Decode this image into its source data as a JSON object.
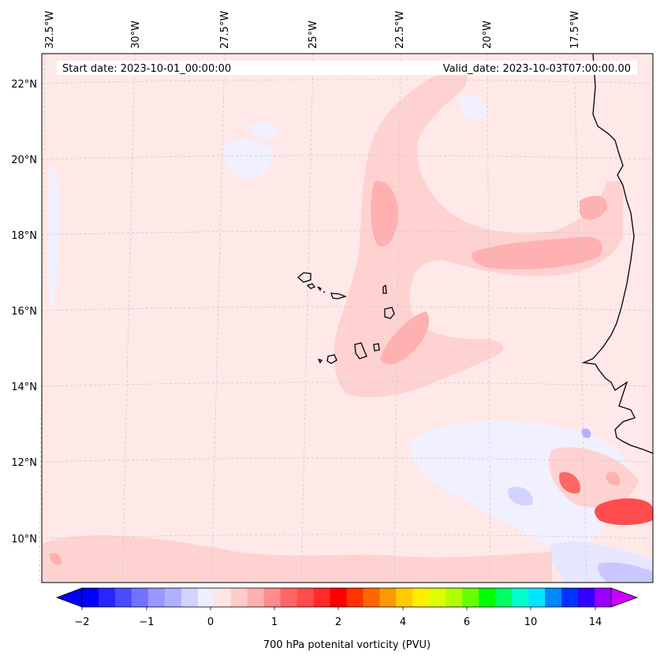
{
  "header": {
    "start_date": "Start date: 2023-10-01_00:00:00",
    "valid_date": "Valid_date: 2023-10-03T07:00:00.00"
  },
  "map": {
    "lon_labels": [
      "32.5°W",
      "30°W",
      "27.5°W",
      "25°W",
      "22.5°W",
      "20°W",
      "17.5°W"
    ],
    "lat_labels": [
      "22°N",
      "20°N",
      "18°N",
      "16°N",
      "14°N",
      "12°N",
      "10°N"
    ],
    "field": "700 hPa potential vorticity",
    "background_color": "#ffe8e8",
    "coastline_color": "#000000",
    "gridline_color": "#c8c8c8"
  },
  "colorbar": {
    "label": "700 hPa potenital vorticity (PVU)",
    "ticks": [
      "−2",
      "−1",
      "0",
      "1",
      "2",
      "4",
      "6",
      "10",
      "14"
    ],
    "colors": [
      "#0000ff",
      "#2626ff",
      "#4c4cff",
      "#7272ff",
      "#9898ff",
      "#b0b0ff",
      "#d2d2ff",
      "#eeeeff",
      "#ffe6e6",
      "#ffcccc",
      "#ffb0b0",
      "#ff8c8c",
      "#ff6666",
      "#ff4c4c",
      "#ff2a2a",
      "#ff0000",
      "#ff3300",
      "#ff6600",
      "#ff9900",
      "#ffcc00",
      "#ffee00",
      "#ddff00",
      "#b0ff00",
      "#66ff00",
      "#00ff00",
      "#00ff66",
      "#00ffcc",
      "#00e5ff",
      "#0088ff",
      "#0033ff",
      "#3300ff",
      "#9900ff"
    ],
    "extend_low_color": "#0000ff",
    "extend_high_color": "#cc00ff"
  }
}
